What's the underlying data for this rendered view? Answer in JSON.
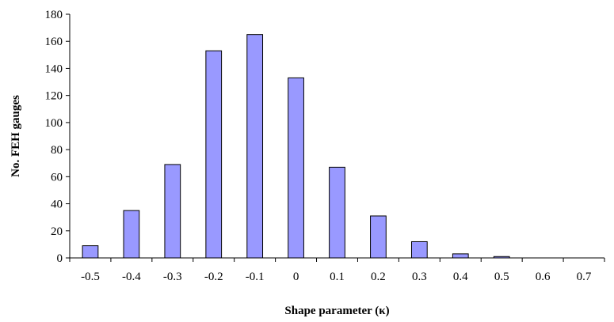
{
  "chart_data": {
    "type": "bar",
    "categories": [
      "-0.5",
      "-0.4",
      "-0.3",
      "-0.2",
      "-0.1",
      "0",
      "0.1",
      "0.2",
      "0.3",
      "0.4",
      "0.5",
      "0.6",
      "0.7"
    ],
    "series": [
      {
        "values": [
          9,
          35,
          69,
          153,
          165,
          133,
          67,
          31,
          12,
          3,
          1,
          0,
          0
        ]
      }
    ],
    "title": "",
    "xlabel": "Shape parameter (κ)",
    "ylabel": "No. FEH gauges",
    "ylim": [
      0,
      180
    ],
    "yticks": [
      "0",
      "20",
      "40",
      "60",
      "80",
      "100",
      "120",
      "140",
      "160",
      "180"
    ],
    "grid": false,
    "legend": "none",
    "bar_color": "#9999ff",
    "bar_edge_color": "#000000"
  }
}
